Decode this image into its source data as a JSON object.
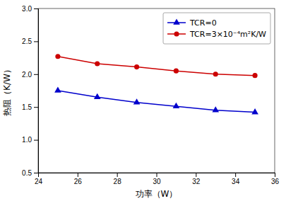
{
  "chart_data": {
    "type": "line",
    "x": [
      25,
      27,
      29,
      31,
      33,
      35
    ],
    "series": [
      {
        "name": "TCR=0",
        "color": "#0000cc",
        "marker": "triangle",
        "values": [
          1.75,
          1.65,
          1.57,
          1.51,
          1.45,
          1.42
        ]
      },
      {
        "name": "TCR=3×10⁻⁴m²K/W",
        "color": "#cc0000",
        "marker": "circle",
        "values": [
          2.27,
          2.16,
          2.11,
          2.05,
          2.0,
          1.98
        ]
      }
    ],
    "xlabel": "功率（W）",
    "ylabel": "热阻（K/W）",
    "xlim": [
      24,
      36
    ],
    "ylim": [
      0.5,
      3.0
    ],
    "xticks": [
      24,
      26,
      28,
      30,
      32,
      34,
      36
    ],
    "yticks": [
      0.5,
      {
        "value": 1.0,
        "label": "1.0"
      },
      1.5,
      {
        "value": 2.0,
        "label": "2.0"
      },
      2.5,
      {
        "value": 3.0,
        "label": "3.0"
      }
    ],
    "grid": false,
    "legend": "upper right"
  }
}
